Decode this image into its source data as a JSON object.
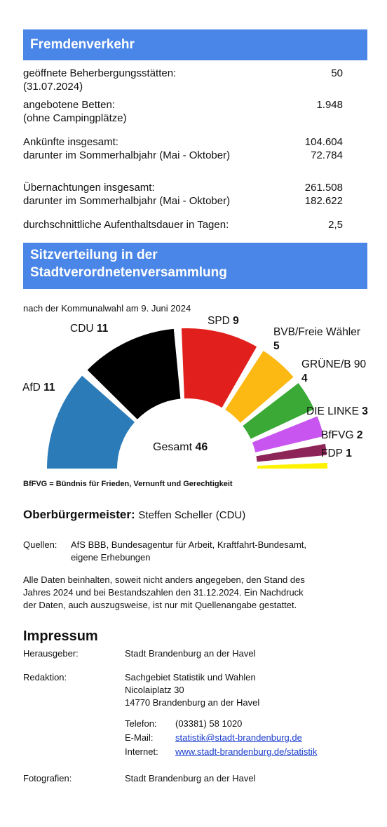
{
  "tourism": {
    "heading": "Fremdenverkehr",
    "rows": [
      {
        "label": "geöffnete Beherbergungsstätten:",
        "sublabel": "(31.07.2024)",
        "value": "50"
      },
      {
        "label": "angebotene Betten:",
        "sublabel": "(ohne Campingplätze)",
        "value": "1.948"
      },
      {
        "label": "Ankünfte insgesamt:",
        "value": "104.604"
      },
      {
        "label": "darunter im Sommerhalbjahr (Mai - Oktober)",
        "value": "72.784"
      },
      {
        "label": "Übernachtungen insgesamt:",
        "value": "261.508"
      },
      {
        "label": "darunter im Sommerhalbjahr (Mai - Oktober)",
        "value": "182.622"
      },
      {
        "label": "durchschnittliche Aufenthaltsdauer in Tagen:",
        "value": "2,5"
      }
    ]
  },
  "seats": {
    "heading_line1": "Sitzverteilung in der",
    "heading_line2": "Stadtverordnetenversammlung",
    "subtitle": "nach der Kommunalwahl am 9. Juni 2024",
    "total_label": "Gesamt",
    "total": "46",
    "footnote": "BfFVG = Bündnis für Frieden, Vernunft und Gerechtigkeit"
  },
  "chart_data": {
    "type": "pie",
    "subtype": "parliament-semicircle",
    "title": "",
    "categories": [
      "AfD",
      "CDU",
      "SPD",
      "BVB/Freie Wähler",
      "GRÜNE/B 90",
      "DIE LINKE",
      "BfFVG",
      "FDP"
    ],
    "values": [
      11,
      11,
      9,
      5,
      4,
      3,
      2,
      1
    ],
    "colors": [
      "#2b7bb9",
      "#000000",
      "#e1201d",
      "#fcb813",
      "#3aa935",
      "#c855f0",
      "#8e2558",
      "#fff200"
    ]
  },
  "mayor": {
    "label": "Oberbürgermeister:",
    "name": "Steffen Scheller",
    "party": "(CDU)"
  },
  "sources": {
    "label": "Quellen:",
    "line1": "AfS BBB, Bundesagentur für Arbeit, Kraftfahrt-Bundesamt,",
    "line2": "eigene Erhebungen"
  },
  "note": {
    "line1": "Alle Daten beinhalten, soweit nicht anders angegeben, den Stand des",
    "line2": "Jahres 2024 und bei Bestandszahlen den 31.12.2024. Ein Nachdruck",
    "line3": "der Daten, auch auszugsweise, ist nur mit Quellenangabe gestattet."
  },
  "impressum": {
    "heading": "Impressum",
    "publisher_label": "Herausgeber:",
    "publisher": "Stadt Brandenburg an der Havel",
    "editor_label": "Redaktion:",
    "editor_line1": "Sachgebiet Statistik und Wahlen",
    "editor_line2": "Nicolaiplatz 30",
    "editor_line3": "14770 Brandenburg an der Havel",
    "phone_label": "Telefon:",
    "phone": "(03381) 58 1020",
    "email_label": "E-Mail:",
    "email": "statistik@stadt-brandenburg.de",
    "web_label": "Internet:",
    "web": "www.stadt-brandenburg.de/statistik",
    "photo_label": "Fotografien:",
    "photo": "Stadt Brandenburg an der Havel"
  }
}
